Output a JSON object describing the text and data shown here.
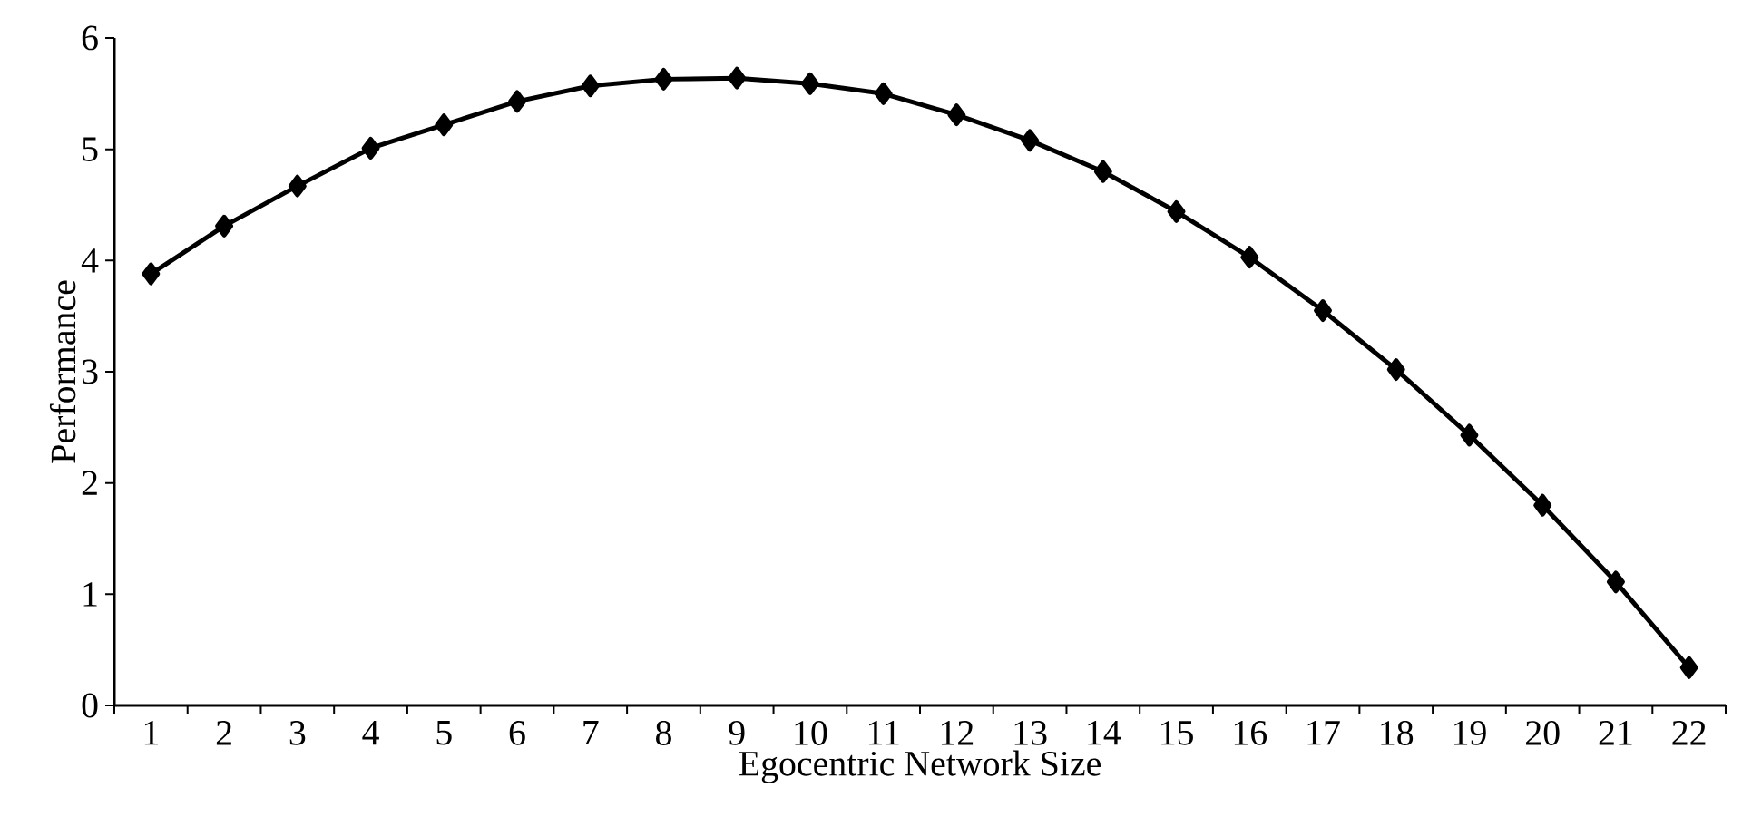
{
  "chart_data": {
    "type": "line",
    "xlabel": "Egocentric Network Size",
    "ylabel": "Performance",
    "categories": [
      "1",
      "2",
      "3",
      "4",
      "5",
      "6",
      "7",
      "8",
      "9",
      "10",
      "11",
      "12",
      "13",
      "14",
      "15",
      "16",
      "17",
      "18",
      "19",
      "20",
      "21",
      "22"
    ],
    "values": [
      3.88,
      4.31,
      4.67,
      5.01,
      5.22,
      5.43,
      5.57,
      5.63,
      5.64,
      5.59,
      5.5,
      5.31,
      5.08,
      4.8,
      4.44,
      4.03,
      3.55,
      3.02,
      2.43,
      1.8,
      1.11,
      0.34
    ],
    "color": "#000000",
    "marker": "diamond",
    "line_style": "solid",
    "ylim": [
      0,
      6
    ],
    "yticks": [
      0,
      1,
      2,
      3,
      4,
      5,
      6
    ]
  }
}
